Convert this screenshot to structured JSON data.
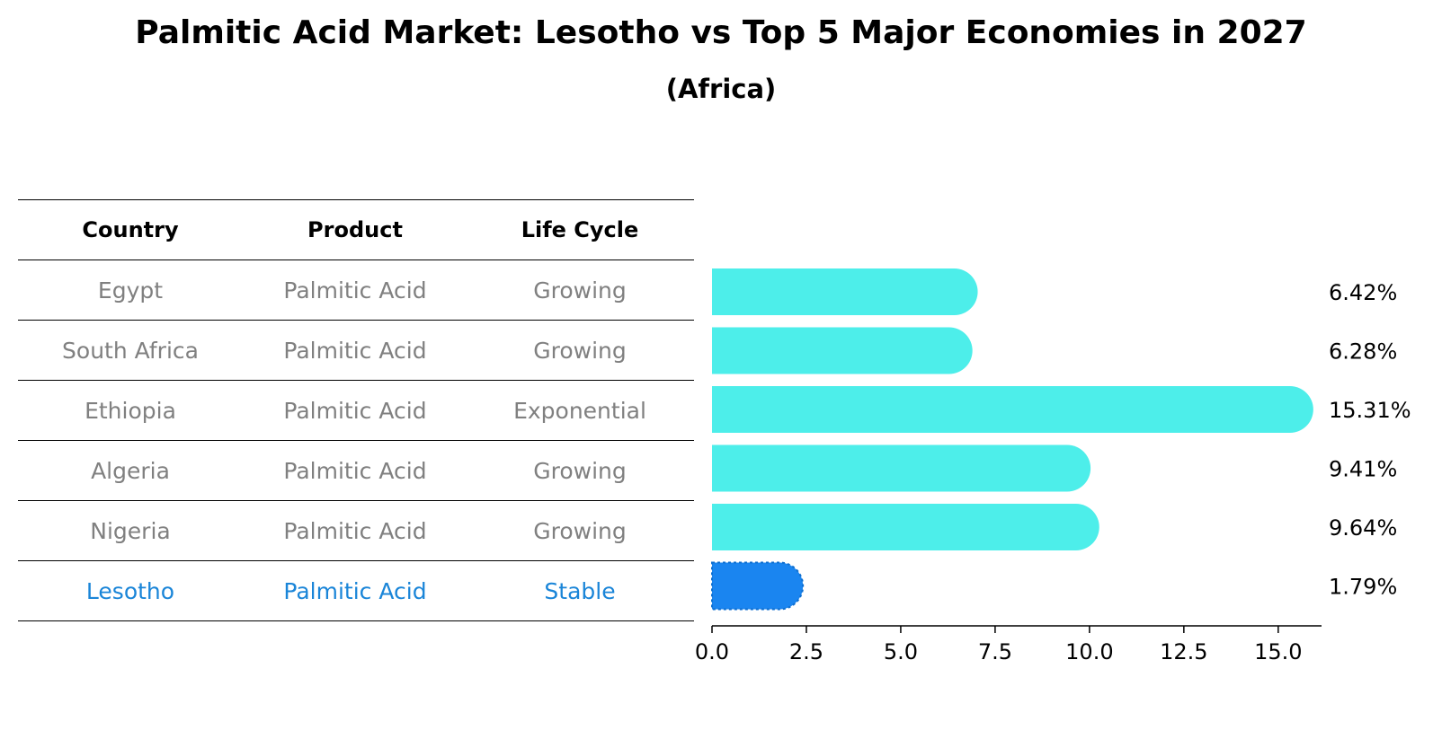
{
  "chart_data": {
    "type": "bar",
    "orientation": "horizontal",
    "title": "Palmitic Acid Market: Lesotho vs Top 5 Major Economies in 2027",
    "subtitle": "(Africa)",
    "table": {
      "columns": [
        "Country",
        "Product",
        "Life Cycle"
      ],
      "rows": [
        [
          "Egypt",
          "Palmitic Acid",
          "Growing"
        ],
        [
          "South Africa",
          "Palmitic Acid",
          "Growing"
        ],
        [
          "Ethiopia",
          "Palmitic Acid",
          "Exponential"
        ],
        [
          "Algeria",
          "Palmitic Acid",
          "Growing"
        ],
        [
          "Nigeria",
          "Palmitic Acid",
          "Growing"
        ],
        [
          "Lesotho",
          "Palmitic Acid",
          "Stable"
        ]
      ]
    },
    "categories": [
      "Egypt",
      "South Africa",
      "Ethiopia",
      "Algeria",
      "Nigeria",
      "Lesotho"
    ],
    "values": [
      6.42,
      6.28,
      15.31,
      9.41,
      9.64,
      1.79
    ],
    "value_labels": [
      "6.42%",
      "6.28%",
      "15.31%",
      "9.41%",
      "9.64%",
      "1.79%"
    ],
    "highlight": "Lesotho",
    "xlim": [
      0,
      16.1
    ],
    "xticks": [
      0.0,
      2.5,
      5.0,
      7.5,
      10.0,
      12.5,
      15.0
    ],
    "xtick_labels": [
      "0.0",
      "2.5",
      "5.0",
      "7.5",
      "10.0",
      "12.5",
      "15.0"
    ],
    "colors": {
      "bar": "#4deeea",
      "highlight_bar": "#1a85f0",
      "highlight_text": "#1a85d8",
      "muted_text": "#808080"
    }
  }
}
